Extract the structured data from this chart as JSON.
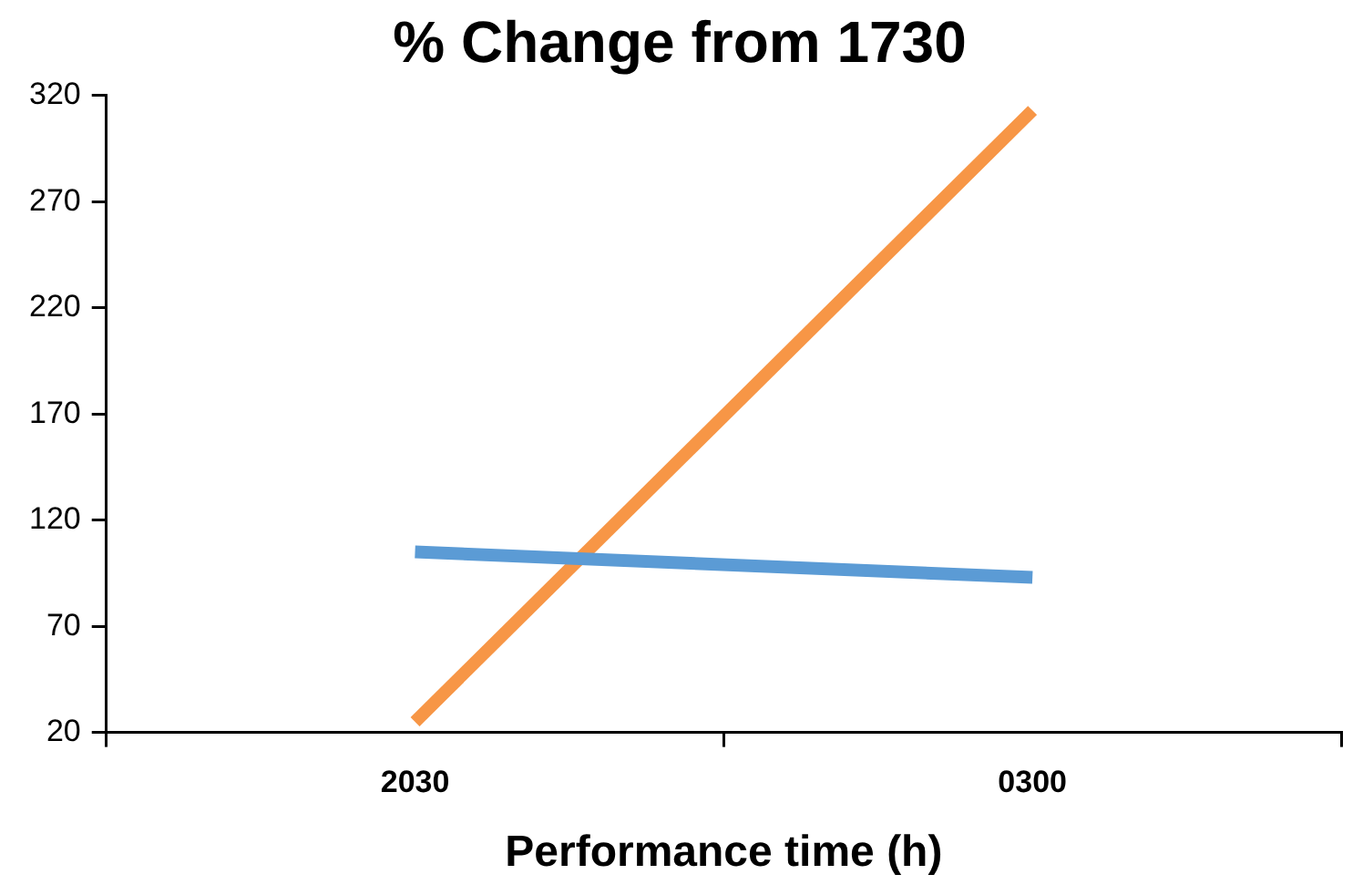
{
  "chart_data": {
    "type": "line",
    "title": "% Change from 1730",
    "xlabel": "Performance time (h)",
    "categories": [
      "2030",
      "0300"
    ],
    "series": [
      {
        "color": "#5b9bd5",
        "values": [
          105,
          93
        ]
      },
      {
        "color": "#f79646",
        "values": [
          25,
          313
        ]
      }
    ],
    "ylim": [
      20,
      320
    ],
    "yticks": [
      20,
      70,
      120,
      170,
      220,
      270,
      320
    ],
    "grid": false,
    "legend": false,
    "marker": "none",
    "line_style": "solid"
  }
}
